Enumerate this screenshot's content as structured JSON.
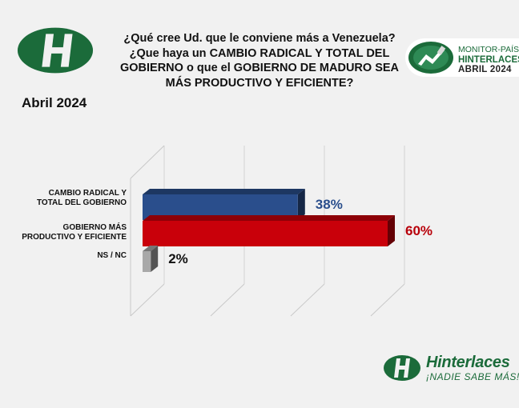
{
  "header": {
    "question": "¿Qué cree Ud. que le conviene más a Venezuela? ¿Que haya un CAMBIO RADICAL Y TOTAL DEL GOBIERNO o que el GOBIERNO DE MADURO SEA MÁS PRODUCTIVO Y EFICIENTE?",
    "period": "Abril 2024"
  },
  "badge": {
    "line1": "MONITOR-PAÍS",
    "line2": "HINTERLACES",
    "line3": "ABRIL 2024"
  },
  "footer": {
    "brand": "Hinterlaces",
    "slogan": "¡NADIE SABE MÁS!"
  },
  "colors": {
    "brand_green": "#1b6b3a",
    "blue": "#2a4e8c",
    "red": "#c9000a",
    "gray": "#a8a8a8"
  },
  "icons": {
    "main_logo": "hinterlaces-h-logo",
    "badge": "monitor-pais-emblem",
    "footer": "hinterlaces-h-logo"
  },
  "chart_data": {
    "type": "bar",
    "orientation": "horizontal",
    "style": "3d",
    "categories": [
      "CAMBIO RADICAL Y TOTAL DEL GOBIERNO",
      "GOBIERNO MÁS PRODUCTIVO Y EFICIENTE",
      "NS / NC"
    ],
    "category_lines": [
      [
        "CAMBIO RADICAL Y",
        "TOTAL DEL GOBIERNO"
      ],
      [
        "GOBIERNO MÁS",
        "PRODUCTIVO Y EFICIENTE"
      ],
      [
        "NS / NC"
      ]
    ],
    "values": [
      38,
      60,
      2
    ],
    "value_labels": [
      "38%",
      "60%",
      "2%"
    ],
    "colors": [
      "#2a4e8c",
      "#c9000a",
      "#a8a8a8"
    ],
    "label_colors": [
      "#2a4e8c",
      "#b8000a",
      "#111111"
    ],
    "xlim": [
      0,
      60
    ],
    "grid": true
  }
}
